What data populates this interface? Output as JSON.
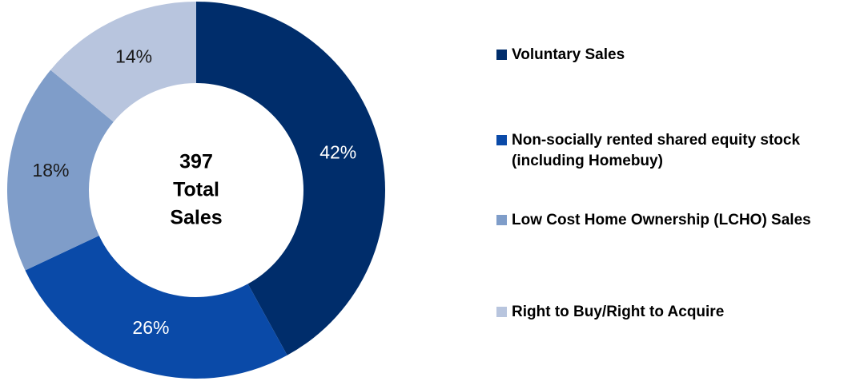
{
  "chart_data": {
    "type": "donut",
    "categories": [
      "Voluntary Sales",
      "Non-socially rented shared equity stock (including Homebuy)",
      "Low Cost Home Ownership (LCHO) Sales",
      "Right to Buy/Right to Acquire"
    ],
    "values": [
      42,
      26,
      18,
      14
    ],
    "value_labels": [
      "42%",
      "26%",
      "18%",
      "14%"
    ],
    "colors": [
      "#002d6b",
      "#0a4aa8",
      "#7f9dc9",
      "#b8c5de"
    ],
    "center_lines": [
      "397",
      "Total",
      "Sales"
    ],
    "legend": "right"
  }
}
